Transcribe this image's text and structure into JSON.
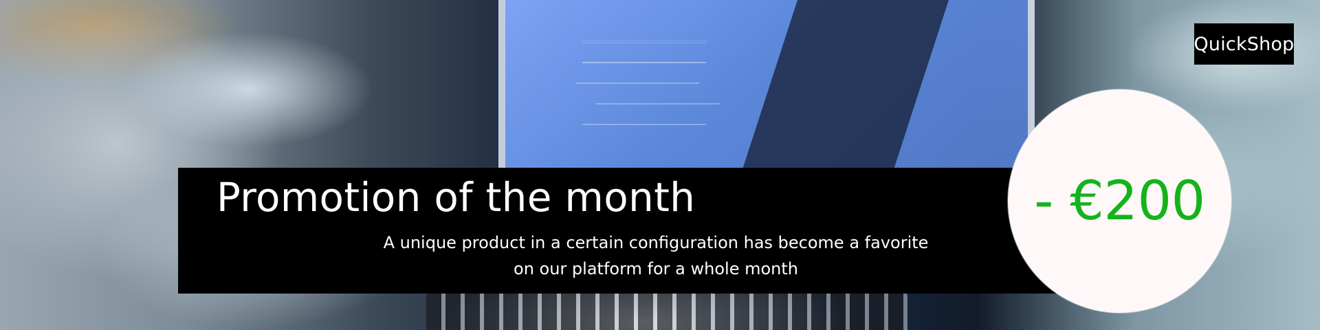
{
  "hero": {
    "brand": "QuickShop",
    "title": "Promotion of the month",
    "subtitle_line_1": "A unique product in a certain configuration has become a favorite",
    "subtitle_line_2": "on our platform for a whole month",
    "discount": "- €200"
  },
  "colors": {
    "promo_background": "#000000",
    "text_primary": "#ffffff",
    "discount_text": "#14b31b",
    "discount_badge_background": "#fff8f8"
  },
  "icons": {
    "background": "laptop-photo"
  }
}
